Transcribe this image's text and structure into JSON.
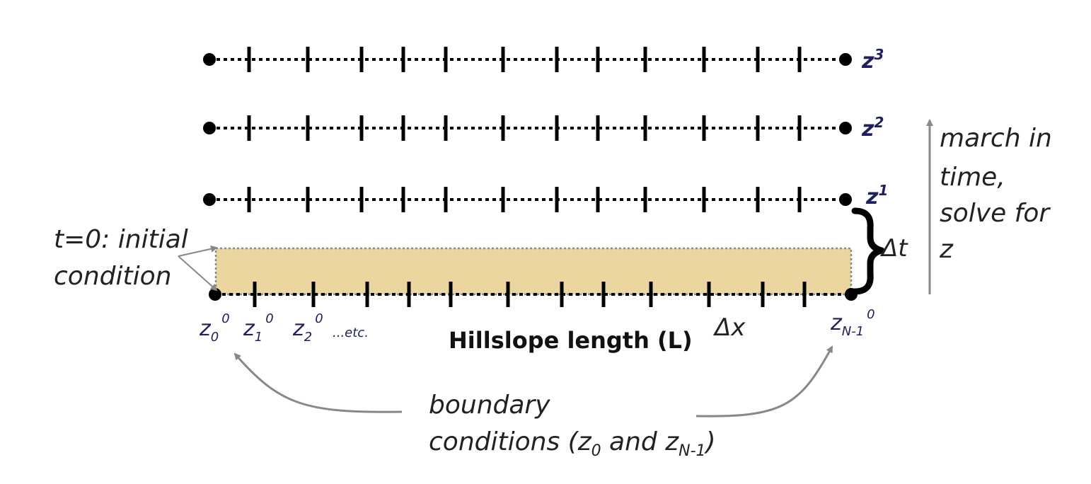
{
  "time_levels": [
    {
      "base": "z",
      "superscript": "3"
    },
    {
      "base": "z",
      "superscript": "2"
    },
    {
      "base": "z",
      "superscript": "1"
    }
  ],
  "march_label": [
    "march in",
    "time,",
    "solve for",
    "z"
  ],
  "dt_label": "Δt",
  "dx_label": "Δx",
  "initial_condition_label": [
    "t=0: initial",
    "condition"
  ],
  "node_labels": [
    {
      "base": "z",
      "sub": "0",
      "sup": "0"
    },
    {
      "base": "z",
      "sub": "1",
      "sup": "0"
    },
    {
      "base": "z",
      "sub": "2",
      "sup": "0"
    }
  ],
  "etc_label": "...etc.",
  "last_node_label": {
    "base": "z",
    "sub": "N-1",
    "sup": "0"
  },
  "axis_label": "Hillslope length (L)",
  "boundary_label": {
    "line1": "boundary",
    "line2_prefix": "conditions  (z",
    "sub0": "0",
    "and": " and z",
    "subN": "N-1",
    "close": ")"
  },
  "colors": {
    "initial_band": "#ecd6a0",
    "node_text": "#1f1f5c",
    "arrow": "#888888",
    "line": "#000000"
  }
}
